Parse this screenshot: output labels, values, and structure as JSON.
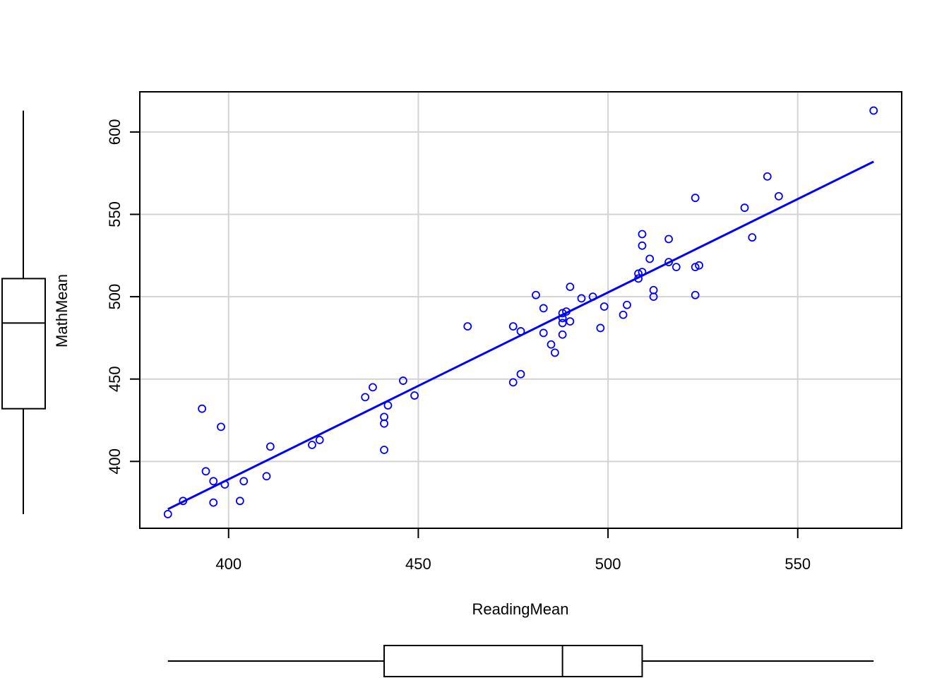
{
  "chart_data": {
    "type": "scatter",
    "title": "",
    "xlabel": "ReadingMean",
    "ylabel": "MathMean",
    "xlim": [
      376.6,
      577.4
    ],
    "ylim": [
      359.4,
      624.4
    ],
    "x_ticks": [
      400,
      450,
      500,
      550
    ],
    "y_ticks": [
      400,
      450,
      500,
      550,
      600
    ],
    "grid": true,
    "point_color": "#0000ff",
    "line_color": "#0000ff",
    "regression_line": {
      "x": [
        384,
        570
      ],
      "y": [
        371,
        582
      ]
    },
    "points": [
      [
        384,
        368
      ],
      [
        388,
        376
      ],
      [
        393,
        432
      ],
      [
        394,
        394
      ],
      [
        396,
        388
      ],
      [
        396,
        375
      ],
      [
        398,
        421
      ],
      [
        399,
        386
      ],
      [
        403,
        376
      ],
      [
        404,
        388
      ],
      [
        410,
        391
      ],
      [
        411,
        409
      ],
      [
        422,
        410
      ],
      [
        424,
        413
      ],
      [
        436,
        439
      ],
      [
        438,
        445
      ],
      [
        441,
        427
      ],
      [
        441,
        423
      ],
      [
        441,
        407
      ],
      [
        442,
        434
      ],
      [
        446,
        449
      ],
      [
        449,
        440
      ],
      [
        463,
        482
      ],
      [
        475,
        482
      ],
      [
        475,
        448
      ],
      [
        477,
        479
      ],
      [
        477,
        453
      ],
      [
        481,
        501
      ],
      [
        483,
        493
      ],
      [
        483,
        478
      ],
      [
        485,
        471
      ],
      [
        486,
        466
      ],
      [
        488,
        490
      ],
      [
        488,
        487
      ],
      [
        488,
        484
      ],
      [
        488,
        477
      ],
      [
        489,
        491
      ],
      [
        490,
        506
      ],
      [
        490,
        485
      ],
      [
        493,
        499
      ],
      [
        496,
        500
      ],
      [
        498,
        481
      ],
      [
        499,
        494
      ],
      [
        504,
        489
      ],
      [
        505,
        495
      ],
      [
        508,
        514
      ],
      [
        508,
        511
      ],
      [
        509,
        538
      ],
      [
        509,
        531
      ],
      [
        509,
        515
      ],
      [
        511,
        523
      ],
      [
        512,
        504
      ],
      [
        512,
        500
      ],
      [
        516,
        535
      ],
      [
        516,
        521
      ],
      [
        518,
        518
      ],
      [
        523,
        560
      ],
      [
        523,
        518
      ],
      [
        523,
        501
      ],
      [
        524,
        519
      ],
      [
        536,
        554
      ],
      [
        538,
        536
      ],
      [
        542,
        573
      ],
      [
        545,
        561
      ],
      [
        570,
        613
      ]
    ],
    "boxplot_x": {
      "min": 384,
      "q1": 441,
      "median": 488,
      "q3": 509,
      "max": 570
    },
    "boxplot_y": {
      "min": 368,
      "q1": 432,
      "median": 484,
      "q3": 511,
      "max": 613
    }
  }
}
